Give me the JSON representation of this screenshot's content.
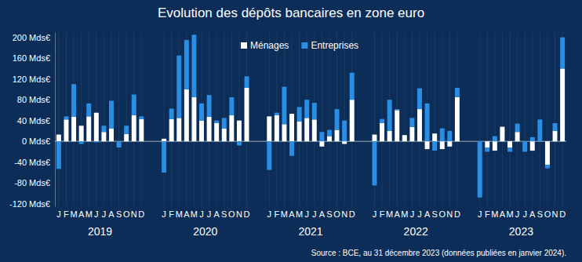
{
  "chart_data": {
    "type": "bar",
    "title": "Evolution des dépôts bancaires en zone euro",
    "source": "Source : BCE, au 31 décembre 2023 (données publiées en janvier 2024).",
    "years": [
      "2019",
      "2020",
      "2021",
      "2022",
      "2023"
    ],
    "categories": [
      "J",
      "F",
      "M",
      "A",
      "M",
      "J",
      "J",
      "A",
      "S",
      "O",
      "N",
      "D",
      "J",
      "F",
      "M",
      "A",
      "M",
      "J",
      "J",
      "A",
      "S",
      "O",
      "N",
      "D",
      "J",
      "F",
      "M",
      "A",
      "M",
      "J",
      "J",
      "A",
      "S",
      "O",
      "N",
      "D",
      "J",
      "F",
      "M",
      "A",
      "M",
      "J",
      "J",
      "A",
      "S",
      "O",
      "N",
      "D",
      "J",
      "F",
      "M",
      "A",
      "M",
      "J",
      "J",
      "A",
      "S",
      "O",
      "N",
      "D"
    ],
    "series": [
      {
        "name": "Ménages",
        "color": "#ffffff",
        "values": [
          13,
          42,
          47,
          30,
          48,
          55,
          18,
          25,
          0,
          14,
          50,
          43,
          5,
          43,
          45,
          100,
          85,
          40,
          47,
          35,
          25,
          50,
          40,
          103,
          48,
          50,
          33,
          53,
          38,
          45,
          42,
          -10,
          10,
          22,
          -5,
          80,
          13,
          35,
          20,
          60,
          12,
          28,
          62,
          -15,
          15,
          -15,
          -10,
          85,
          0,
          -12,
          -18,
          28,
          -12,
          18,
          0,
          -18,
          0,
          -45,
          20,
          140
        ]
      },
      {
        "name": "Entreprises",
        "color": "#2a8fe4",
        "values": [
          -53,
          6,
          63,
          -5,
          25,
          -2,
          12,
          53,
          -12,
          16,
          40,
          5,
          -60,
          20,
          120,
          95,
          120,
          33,
          42,
          5,
          20,
          35,
          -8,
          22,
          -55,
          5,
          72,
          -28,
          28,
          35,
          32,
          18,
          12,
          40,
          40,
          52,
          -85,
          8,
          60,
          2,
          0,
          17,
          40,
          73,
          -18,
          25,
          20,
          18,
          -108,
          -8,
          10,
          0,
          -8,
          16,
          -20,
          8,
          42,
          -7,
          15,
          60
        ]
      }
    ],
    "stacked": true,
    "legend": "top",
    "grid": true,
    "ylim": [
      -125,
      210
    ],
    "yticks": [
      {
        "value": -120,
        "label": "-120 Mds€"
      },
      {
        "value": -80,
        "label": "-80 Mds€"
      },
      {
        "value": -40,
        "label": "-40 Mds€"
      },
      {
        "value": 0,
        "label": "0 Mds€"
      },
      {
        "value": 40,
        "label": "40 Mds€"
      },
      {
        "value": 80,
        "label": "80 Mds€"
      },
      {
        "value": 120,
        "label": "120 Mds€"
      },
      {
        "value": 160,
        "label": "160 Mds€"
      },
      {
        "value": 200,
        "label": "200 Mds€"
      }
    ]
  }
}
